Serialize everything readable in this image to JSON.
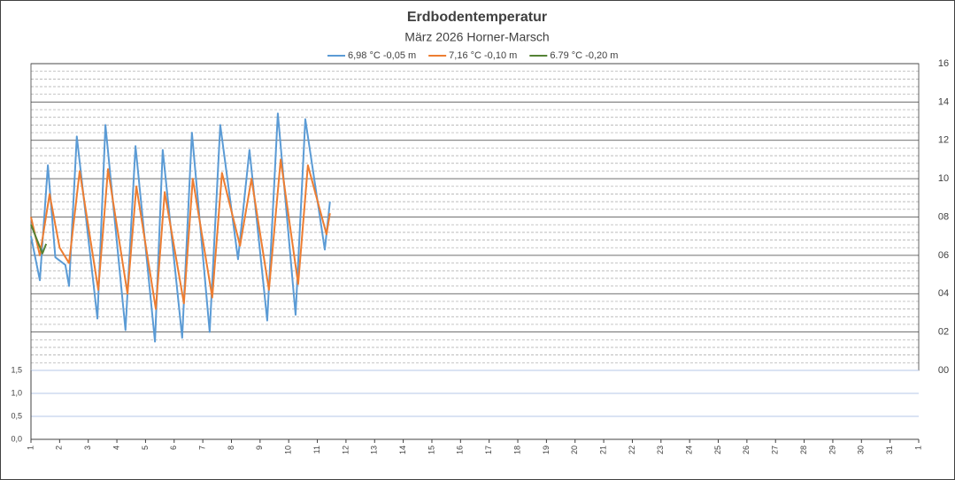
{
  "chart_data": [
    {
      "type": "line",
      "title": "Erdbodentemperatur",
      "subtitle": "März 2026 Horner-Marsch",
      "xlim": [
        1,
        32
      ],
      "ylim": [
        0,
        16
      ],
      "yticks": [
        {
          "value": 0,
          "label": "00"
        },
        {
          "value": 2,
          "label": "02"
        },
        {
          "value": 4,
          "label": "04"
        },
        {
          "value": 6,
          "label": "06"
        },
        {
          "value": 8,
          "label": "08"
        },
        {
          "value": 10,
          "label": "10"
        },
        {
          "value": 12,
          "label": "12"
        },
        {
          "value": 14,
          "label": "14"
        },
        {
          "value": 16,
          "label": "16"
        }
      ],
      "grid": true,
      "legend": "top",
      "series": [
        {
          "name": "6,98 °C -0,05 m",
          "color": "#5b9bd5",
          "x": [
            1,
            1.31,
            1.59,
            1.85,
            2.2,
            2.33,
            2.6,
            3.32,
            3.6,
            4.3,
            4.65,
            5.33,
            5.6,
            6.28,
            6.62,
            7.24,
            7.61,
            8.23,
            8.63,
            9.25,
            9.62,
            10.24,
            10.58,
            11.26,
            11.44
          ],
          "values": [
            7.0,
            4.7,
            10.7,
            5.9,
            5.5,
            4.4,
            12.2,
            2.7,
            12.8,
            2.1,
            11.7,
            1.5,
            11.5,
            1.7,
            12.4,
            2.0,
            12.8,
            5.8,
            11.5,
            2.6,
            13.4,
            2.9,
            13.1,
            6.3,
            8.8
          ]
        },
        {
          "name": "7,16 °C -0,10 m",
          "color": "#ed7d31",
          "x": [
            1,
            1.31,
            1.65,
            2.0,
            2.33,
            2.7,
            3.35,
            3.69,
            4.37,
            4.68,
            5.36,
            5.67,
            6.34,
            6.65,
            7.33,
            7.67,
            8.3,
            8.7,
            9.31,
            9.72,
            10.33,
            10.67,
            11.32,
            11.44
          ],
          "values": [
            8.0,
            6.0,
            9.2,
            6.4,
            5.6,
            10.4,
            4.2,
            10.5,
            4.0,
            9.6,
            3.2,
            9.3,
            3.5,
            10.0,
            3.8,
            10.3,
            6.5,
            10.0,
            4.2,
            11.0,
            4.5,
            10.7,
            7.1,
            8.2
          ]
        },
        {
          "name": "6.79 °C -0,20 m",
          "color": "#548235",
          "x": [
            1,
            1.4,
            1.53
          ],
          "values": [
            7.6,
            6.1,
            6.6
          ]
        }
      ]
    },
    {
      "type": "line",
      "xlim": [
        1,
        32
      ],
      "xticks": [
        1,
        2,
        3,
        4,
        5,
        6,
        7,
        8,
        9,
        10,
        11,
        12,
        13,
        14,
        15,
        16,
        17,
        18,
        19,
        20,
        21,
        22,
        23,
        24,
        25,
        26,
        27,
        28,
        29,
        30,
        31,
        {
          "value": 32,
          "label": "1"
        }
      ],
      "ylim": [
        0,
        1.5
      ],
      "yticks": [
        {
          "value": 0,
          "label": "0,0"
        },
        {
          "value": 0.5,
          "label": "0,5"
        },
        {
          "value": 1,
          "label": "1,0"
        },
        {
          "value": 1.5,
          "label": "1,5"
        }
      ],
      "grid": true,
      "series": []
    }
  ]
}
